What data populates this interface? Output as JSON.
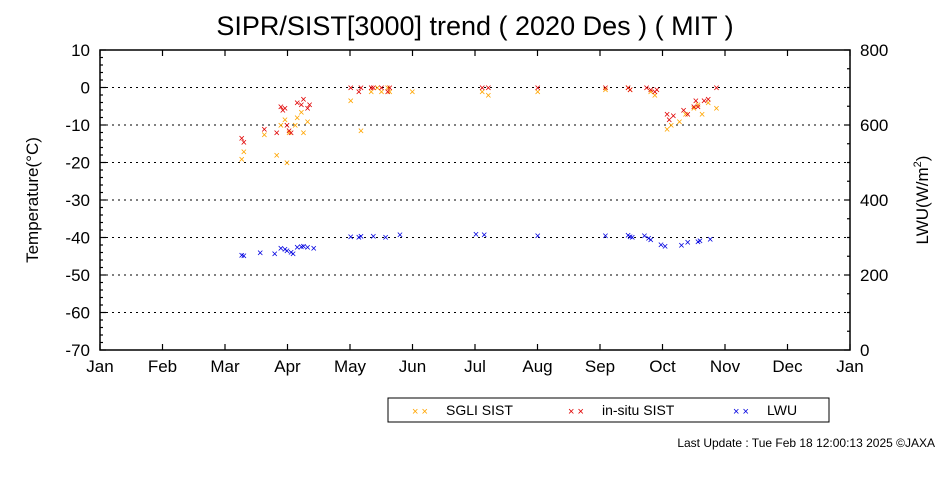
{
  "chart_data": {
    "type": "scatter",
    "title": "SIPR/SIST[3000] trend ( 2020 Des ) ( MIT )",
    "ylabel": "Temperature(°C)",
    "y2label_base": "LWU(W/m",
    "y2label_sup": "2",
    "y2label_end": ")",
    "ylim": [
      -70,
      10
    ],
    "yticks": [
      "10",
      "0",
      "-10",
      "-20",
      "-30",
      "-40",
      "-50",
      "-60",
      "-70"
    ],
    "y2lim": [
      0,
      800
    ],
    "y2ticks": [
      "800",
      "600",
      "400",
      "200",
      "0"
    ],
    "months": [
      "Jan",
      "Feb",
      "Mar",
      "Apr",
      "May",
      "Jun",
      "Jul",
      "Aug",
      "Sep",
      "Oct",
      "Nov",
      "Dec",
      "Jan"
    ],
    "x_unit": "day of year",
    "grid": true,
    "legend_position": "bottom-right",
    "marker": "×",
    "series": [
      {
        "name": "SGLI SIST",
        "color": "#ffa500",
        "axis": "left",
        "x": [
          69,
          70,
          80,
          86,
          88,
          90,
          91,
          92,
          95,
          96,
          98,
          99,
          101,
          122,
          127,
          132,
          135,
          137,
          140,
          141,
          152,
          186,
          189,
          213,
          246,
          257,
          258,
          268,
          270,
          276,
          278,
          282,
          285,
          289,
          291,
          293,
          296,
          300
        ],
        "y": [
          -19,
          -17,
          -12.5,
          -18,
          -10,
          -8.5,
          -20,
          -12,
          -10,
          -8,
          -6.5,
          -12,
          -9,
          -3.5,
          -11.5,
          -1,
          0,
          -1,
          0,
          -1,
          -1,
          -1,
          -2,
          -1,
          -0.5,
          0,
          -0.5,
          -1,
          -2,
          -11,
          -10,
          -9,
          -7,
          -5.5,
          -4.5,
          -7,
          -4,
          -5.5
        ]
      },
      {
        "name": "in-situ SIST",
        "color": "#e00000",
        "axis": "left",
        "x": [
          69,
          70,
          80,
          86,
          88,
          89,
          90,
          91,
          92,
          93,
          96,
          98,
          99,
          101,
          102,
          122,
          126,
          127,
          132,
          133,
          137,
          140,
          141,
          186,
          189,
          213,
          246,
          257,
          258,
          266,
          268,
          270,
          271,
          276,
          277,
          279,
          284,
          286,
          289,
          290,
          291,
          294,
          296,
          300
        ],
        "y": [
          -13.5,
          -14.5,
          -11,
          -12,
          -5,
          -6,
          -5.5,
          -10,
          -11.5,
          -12,
          -4,
          -4.5,
          -3,
          -5.5,
          -4.5,
          0,
          -1,
          0,
          0,
          0,
          0,
          -1,
          0,
          0,
          0,
          0,
          0,
          0,
          -0.5,
          0,
          -0.5,
          -1,
          -0.5,
          -7,
          -8.5,
          -7.5,
          -6,
          -7,
          -5,
          -3.5,
          -5,
          -3.5,
          -3,
          0
        ]
      },
      {
        "name": "LWU",
        "color": "#0000e0",
        "axis": "right",
        "x": [
          69,
          70,
          78,
          85,
          88,
          90,
          91,
          93,
          94,
          96,
          98,
          99,
          101,
          104,
          122,
          126,
          127,
          133,
          139,
          146,
          183,
          187,
          213,
          246,
          257,
          258,
          259,
          265,
          267,
          268,
          273,
          275,
          283,
          286,
          291,
          292,
          297
        ],
        "y": [
          254,
          252,
          260,
          258,
          272,
          270,
          265,
          262,
          258,
          275,
          276,
          278,
          275,
          272,
          303,
          301,
          304,
          304,
          301,
          308,
          310,
          308,
          306,
          305,
          307,
          303,
          301,
          305,
          299,
          295,
          282,
          278,
          280,
          288,
          290,
          292,
          296
        ]
      }
    ]
  },
  "footer": {
    "last_update": "Last Update : Tue Feb 18 12:00:13 2025  ©JAXA"
  }
}
